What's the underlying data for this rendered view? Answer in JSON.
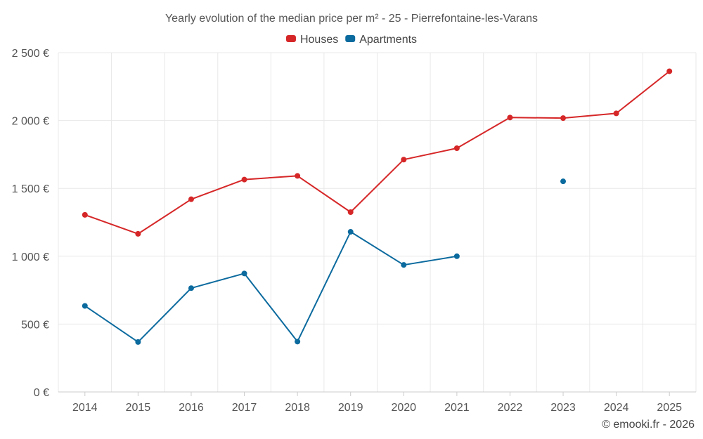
{
  "chart_data": {
    "type": "line",
    "title": "Yearly evolution of the median price per m² - 25 - Pierrefontaine-les-Varans",
    "categories": [
      "2014",
      "2015",
      "2016",
      "2017",
      "2018",
      "2019",
      "2020",
      "2021",
      "2022",
      "2023",
      "2024",
      "2025"
    ],
    "series": [
      {
        "name": "Houses",
        "color": "#d62728",
        "values": [
          1305,
          1165,
          1420,
          1565,
          1592,
          1325,
          1712,
          1796,
          2022,
          2018,
          2053,
          2363
        ]
      },
      {
        "name": "Apartments",
        "color": "#0b6a9e",
        "values": [
          634,
          368,
          765,
          873,
          371,
          1180,
          936,
          1000,
          null,
          1552,
          null,
          null
        ]
      }
    ],
    "ylim": [
      0,
      2500
    ],
    "yticks": [
      0,
      500,
      1000,
      1500,
      2000,
      2500
    ],
    "ytick_labels": [
      "0 €",
      "500 €",
      "1 000 €",
      "1 500 €",
      "2 000 €",
      "2 500 €"
    ],
    "xlabel": "",
    "ylabel": "",
    "grid": true,
    "legend_position": "top-center"
  },
  "credit": "© emooki.fr - 2026"
}
